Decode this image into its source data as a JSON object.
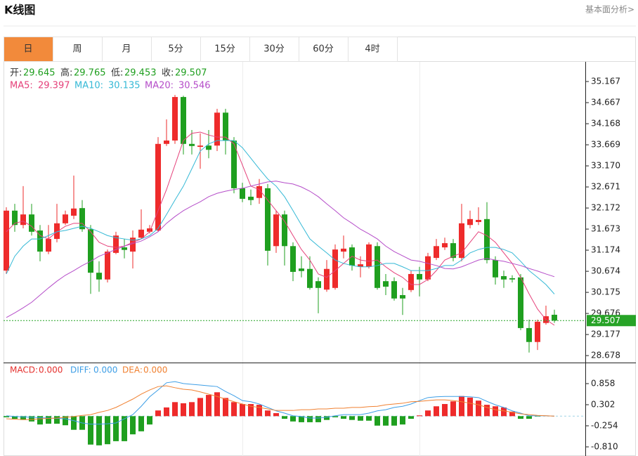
{
  "header": {
    "title": "K线图",
    "link": "基本面分析>"
  },
  "tabs": {
    "items": [
      "日",
      "周",
      "月",
      "5分",
      "15分",
      "30分",
      "60分",
      "4时"
    ],
    "active": 0
  },
  "chart_data": [
    {
      "type": "candlestick",
      "ohlc_names": [
        "开:",
        "高:",
        "低:",
        "收:"
      ],
      "up_color": "#ee2b2b",
      "down_color": "#1f9f1f",
      "last_price_line": true,
      "last_price_color": "#27a327",
      "open": [
        30.69,
        32.11,
        31.77,
        32.02,
        31.64,
        31.14,
        31.44,
        31.81,
        31.99,
        32.17,
        31.67,
        30.64,
        30.48,
        31.11,
        31.24,
        31.14,
        31.47,
        31.61,
        31.64,
        33.69,
        33.77,
        34.8,
        33.69,
        33.62,
        33.65,
        33.65,
        34.43,
        33.77,
        32.64,
        32.44,
        32.41,
        32.64,
        31.27,
        32.02,
        31.27,
        30.74,
        30.73,
        30.44,
        30.24,
        30.28,
        31.14,
        31.24,
        30.78,
        30.78,
        31.27,
        30.44,
        30.44,
        30.11,
        30.23,
        30.61,
        30.48,
        30.99,
        31.24,
        31.34,
        30.99,
        31.77,
        31.84,
        31.91,
        30.94,
        30.56,
        30.51,
        30.53,
        29.33,
        29.0,
        29.45,
        29.645
      ],
      "high": [
        32.19,
        32.27,
        32.69,
        32.27,
        31.77,
        31.77,
        32.27,
        32.11,
        32.94,
        32.36,
        31.77,
        30.91,
        31.19,
        31.61,
        31.44,
        31.64,
        32.14,
        31.77,
        33.85,
        34.27,
        34.85,
        34.83,
        34.02,
        33.94,
        34.02,
        34.52,
        34.52,
        33.85,
        32.77,
        32.61,
        32.86,
        32.74,
        32.11,
        32.11,
        31.36,
        31.03,
        31.03,
        30.53,
        30.94,
        31.31,
        31.52,
        31.31,
        31.03,
        31.36,
        31.36,
        30.61,
        30.53,
        30.28,
        30.69,
        30.78,
        31.11,
        31.44,
        31.47,
        31.44,
        32.27,
        32.11,
        32.19,
        32.31,
        31.03,
        30.69,
        30.58,
        30.61,
        29.53,
        29.53,
        29.86,
        29.765
      ],
      "low": [
        30.61,
        31.61,
        31.69,
        31.52,
        30.91,
        31.08,
        31.36,
        31.77,
        31.91,
        31.61,
        30.14,
        30.19,
        30.41,
        31.08,
        30.98,
        30.74,
        31.44,
        31.57,
        31.61,
        33.64,
        33.69,
        33.44,
        33.44,
        33.1,
        33.35,
        33.52,
        33.44,
        32.52,
        32.31,
        32.24,
        32.27,
        30.81,
        31.11,
        30.81,
        30.44,
        30.53,
        30.24,
        29.68,
        30.19,
        30.24,
        30.98,
        30.69,
        30.53,
        30.74,
        30.24,
        30.11,
        29.98,
        29.64,
        30.18,
        30.08,
        30.44,
        30.94,
        31.18,
        30.91,
        30.91,
        31.69,
        31.77,
        30.86,
        30.36,
        30.28,
        30.41,
        29.28,
        28.75,
        28.81,
        29.41,
        29.453
      ],
      "close": [
        32.11,
        31.77,
        32.02,
        31.61,
        31.14,
        31.44,
        31.81,
        32.02,
        32.16,
        31.67,
        30.64,
        30.48,
        31.14,
        31.52,
        31.18,
        31.47,
        31.66,
        31.69,
        33.69,
        33.77,
        34.8,
        33.69,
        33.64,
        33.65,
        33.55,
        34.43,
        33.77,
        32.64,
        32.39,
        32.36,
        32.69,
        31.16,
        32.02,
        31.27,
        30.66,
        30.68,
        30.28,
        30.28,
        30.73,
        31.19,
        31.21,
        30.81,
        30.84,
        31.31,
        30.28,
        30.31,
        30.03,
        30.03,
        30.61,
        30.48,
        31.03,
        31.27,
        31.34,
        30.99,
        31.81,
        31.91,
        31.89,
        30.94,
        30.53,
        30.48,
        30.48,
        29.33,
        29.0,
        29.48,
        29.61,
        29.507
      ],
      "series": [
        {
          "name": "MA5:",
          "color": "#e5417a",
          "values": [
            31.61,
            31.81,
            31.86,
            31.74,
            31.52,
            31.44,
            31.61,
            31.74,
            31.81,
            31.81,
            31.61,
            31.36,
            31.27,
            31.24,
            31.27,
            31.36,
            31.44,
            31.61,
            32.11,
            32.61,
            33.19,
            33.77,
            33.94,
            33.97,
            33.9,
            33.85,
            33.85,
            33.69,
            33.19,
            32.69,
            32.61,
            32.36,
            32.11,
            31.86,
            31.52,
            31.19,
            30.94,
            30.61,
            30.53,
            30.69,
            30.86,
            31.03,
            30.94,
            30.91,
            30.94,
            30.78,
            30.64,
            30.53,
            30.36,
            30.36,
            30.48,
            30.69,
            30.94,
            31.03,
            31.11,
            31.36,
            31.61,
            31.52,
            31.36,
            31.11,
            30.86,
            30.53,
            30.14,
            29.78,
            29.53,
            29.397
          ]
        },
        {
          "name": "MA10:",
          "color": "#35b9d6",
          "values": [
            30.61,
            31.03,
            31.27,
            31.44,
            31.44,
            31.52,
            31.61,
            31.64,
            31.69,
            31.74,
            31.69,
            31.61,
            31.52,
            31.47,
            31.44,
            31.41,
            31.44,
            31.52,
            31.69,
            32.02,
            32.36,
            32.69,
            33.1,
            33.52,
            33.69,
            33.77,
            33.77,
            33.77,
            33.6,
            33.35,
            33.1,
            32.86,
            32.69,
            32.44,
            32.11,
            31.77,
            31.44,
            31.27,
            31.11,
            30.94,
            30.86,
            30.81,
            30.78,
            30.78,
            30.81,
            30.86,
            30.86,
            30.78,
            30.69,
            30.69,
            30.69,
            30.74,
            30.81,
            30.81,
            30.94,
            31.11,
            31.19,
            31.24,
            31.24,
            31.19,
            31.11,
            30.91,
            30.69,
            30.53,
            30.36,
            30.135
          ]
        },
        {
          "name": "MA20:",
          "color": "#b54dc9",
          "values": [
            29.58,
            29.69,
            29.81,
            29.94,
            30.11,
            30.28,
            30.44,
            30.58,
            30.69,
            30.81,
            30.91,
            31.03,
            31.11,
            31.19,
            31.27,
            31.33,
            31.39,
            31.49,
            31.61,
            31.81,
            31.97,
            32.11,
            32.22,
            32.32,
            32.44,
            32.52,
            32.57,
            32.61,
            32.64,
            32.69,
            32.74,
            32.79,
            32.81,
            32.77,
            32.74,
            32.67,
            32.57,
            32.44,
            32.27,
            32.11,
            31.94,
            31.81,
            31.67,
            31.56,
            31.44,
            31.27,
            31.14,
            31.04,
            30.94,
            30.91,
            30.86,
            30.81,
            30.74,
            30.73,
            30.78,
            30.86,
            30.94,
            30.98,
            30.94,
            30.91,
            30.86,
            30.81,
            30.74,
            30.68,
            30.61,
            30.546
          ]
        }
      ],
      "ylim": [
        28.53,
        35.633
      ],
      "yticks": [
        35.167,
        34.667,
        34.168,
        33.669,
        {
          "value": 33.17,
          "label": "33.170"
        },
        32.671,
        32.172,
        31.673,
        31.174,
        30.674,
        30.175,
        29.676,
        29.177,
        28.678
      ]
    },
    {
      "type": "macd",
      "series": [
        {
          "name": "MACD:",
          "color": "#e5302d",
          "up_color": "#ee2b2b",
          "down_color": "#1f9f1f",
          "readout": "0.000",
          "values": [
            -0.03,
            -0.07,
            -0.1,
            -0.14,
            -0.22,
            -0.2,
            -0.2,
            -0.24,
            -0.36,
            -0.36,
            -0.75,
            -0.77,
            -0.74,
            -0.66,
            -0.66,
            -0.48,
            -0.4,
            -0.22,
            0.15,
            0.23,
            0.37,
            0.34,
            0.37,
            0.48,
            0.56,
            0.63,
            0.48,
            0.37,
            0.32,
            0.32,
            0.3,
            0.15,
            0.08,
            -0.07,
            -0.14,
            -0.16,
            -0.16,
            -0.16,
            -0.1,
            -0.03,
            -0.07,
            -0.1,
            -0.12,
            -0.12,
            -0.25,
            -0.25,
            -0.25,
            -0.22,
            -0.07,
            0.02,
            0.15,
            0.26,
            0.32,
            0.39,
            0.53,
            0.49,
            0.41,
            0.3,
            0.26,
            0.23,
            0.12,
            -0.07,
            -0.07,
            -0.01,
            0,
            0
          ]
        },
        {
          "name": "DIFF:",
          "color": "#3d9ee6",
          "readout": "0.000",
          "values": [
            0.01,
            -0.01,
            -0.02,
            -0.03,
            -0.04,
            -0.05,
            -0.06,
            -0.07,
            -0.12,
            -0.18,
            -0.21,
            -0.21,
            -0.2,
            -0.18,
            -0.07,
            0.04,
            0.26,
            0.51,
            0.69,
            0.88,
            0.91,
            0.86,
            0.84,
            0.82,
            0.8,
            0.78,
            0.65,
            0.54,
            0.41,
            0.38,
            0.32,
            0.23,
            0.14,
            0.08,
            0.01,
            -0.01,
            -0.05,
            -0.05,
            -0.03,
            0.01,
            0.04,
            0.04,
            0.04,
            0.08,
            0.14,
            0.17,
            0.23,
            0.26,
            0.32,
            0.41,
            0.49,
            0.51,
            0.52,
            0.52,
            0.52,
            0.51,
            0.49,
            0.39,
            0.3,
            0.23,
            0.14,
            0.08,
            0.01,
            0.01,
            0.01,
            0
          ]
        },
        {
          "name": "DEA:",
          "color": "#f08030",
          "readout": "0.000",
          "values": [
            -0.07,
            -0.08,
            -0.09,
            -0.09,
            -0.07,
            -0.06,
            -0.05,
            -0.03,
            -0.01,
            0.02,
            0.04,
            0.1,
            0.15,
            0.23,
            0.34,
            0.45,
            0.58,
            0.69,
            0.78,
            0.8,
            0.75,
            0.71,
            0.69,
            0.64,
            0.58,
            0.52,
            0.45,
            0.38,
            0.32,
            0.26,
            0.23,
            0.19,
            0.15,
            0.15,
            0.15,
            0.17,
            0.17,
            0.19,
            0.19,
            0.21,
            0.21,
            0.23,
            0.23,
            0.25,
            0.26,
            0.3,
            0.32,
            0.34,
            0.38,
            0.39,
            0.41,
            0.43,
            0.43,
            0.41,
            0.38,
            0.34,
            0.3,
            0.23,
            0.17,
            0.14,
            0.1,
            0.06,
            0.04,
            0.02,
            0.01,
            0
          ]
        }
      ],
      "ylim": [
        -1.051,
        1.395
      ],
      "yticks": [
        0.858,
        0.302,
        -0.254,
        {
          "value": -0.81,
          "label": "-0.810"
        }
      ]
    }
  ]
}
